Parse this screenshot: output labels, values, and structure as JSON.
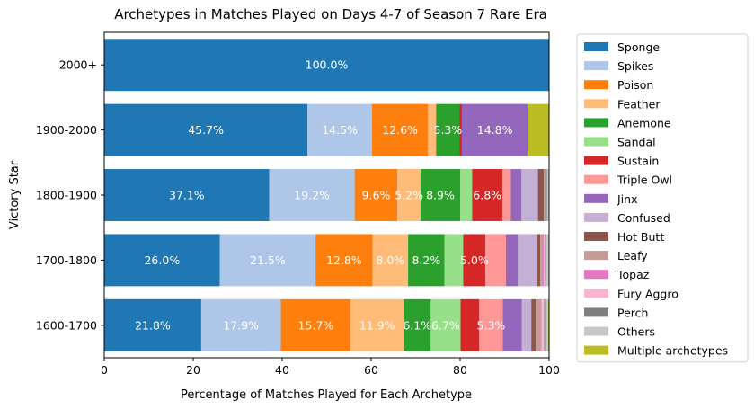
{
  "chart_data": {
    "type": "bar",
    "orientation": "horizontal",
    "stacked": true,
    "title": "Archetypes in Matches Played on Days 4-7 of Season 7 Rare Era",
    "xlabel": "Percentage of Matches Played for Each Archetype",
    "ylabel": "Victory Star",
    "xlim": [
      0,
      100
    ],
    "xticks": [
      "0",
      "20",
      "40",
      "60",
      "80",
      "100"
    ],
    "categories": [
      "2000+",
      "1900-2000",
      "1800-1900",
      "1700-1800",
      "1600-1700"
    ],
    "legend_position": "outside-right",
    "grid": false,
    "series": [
      {
        "name": "Sponge",
        "color": "#1f77b4",
        "values": [
          100.0,
          45.7,
          37.1,
          26.0,
          21.8
        ]
      },
      {
        "name": "Spikes",
        "color": "#aec7e8",
        "values": [
          0,
          14.5,
          19.2,
          21.5,
          17.9
        ]
      },
      {
        "name": "Poison",
        "color": "#ff7f0e",
        "values": [
          0,
          12.6,
          9.6,
          12.8,
          15.7
        ]
      },
      {
        "name": "Feather",
        "color": "#ffbb78",
        "values": [
          0,
          1.8,
          5.2,
          8.0,
          11.9
        ]
      },
      {
        "name": "Anemone",
        "color": "#2ca02c",
        "values": [
          0,
          5.3,
          8.9,
          8.2,
          6.1
        ]
      },
      {
        "name": "Sandal",
        "color": "#98df8a",
        "values": [
          0,
          0,
          2.7,
          4.2,
          6.7
        ]
      },
      {
        "name": "Sustain",
        "color": "#d62728",
        "values": [
          0,
          0.5,
          6.8,
          5.0,
          4.2
        ]
      },
      {
        "name": "Triple Owl",
        "color": "#ff9896",
        "values": [
          0,
          0,
          1.9,
          4.6,
          5.3
        ]
      },
      {
        "name": "Jinx",
        "color": "#9467bd",
        "values": [
          0,
          14.8,
          2.4,
          2.7,
          4.3
        ]
      },
      {
        "name": "Confused",
        "color": "#c5b0d5",
        "values": [
          0,
          0,
          3.7,
          4.3,
          2.1
        ]
      },
      {
        "name": "Hot Butt",
        "color": "#8c564b",
        "values": [
          0,
          0,
          1.3,
          0.7,
          1.0
        ]
      },
      {
        "name": "Leafy",
        "color": "#c49c94",
        "values": [
          0,
          0,
          0.3,
          0.6,
          1.2
        ]
      },
      {
        "name": "Topaz",
        "color": "#e377c2",
        "values": [
          0,
          0,
          0,
          0.2,
          0.1
        ]
      },
      {
        "name": "Fury Aggro",
        "color": "#f7b6d2",
        "values": [
          0,
          0,
          0,
          0.3,
          0.6
        ]
      },
      {
        "name": "Perch",
        "color": "#7f7f7f",
        "values": [
          0,
          0,
          0.4,
          0.2,
          0.2
        ]
      },
      {
        "name": "Others",
        "color": "#c7c7c7",
        "values": [
          0,
          0,
          0.5,
          0.6,
          0.7
        ]
      },
      {
        "name": "Multiple archetypes",
        "color": "#bcbd22",
        "values": [
          0,
          4.8,
          0.0,
          0.1,
          0.2
        ]
      }
    ],
    "data_labels": [
      {
        "category": "2000+",
        "series": "Sponge",
        "text": "100.0%"
      },
      {
        "category": "1900-2000",
        "series": "Sponge",
        "text": "45.7%"
      },
      {
        "category": "1900-2000",
        "series": "Spikes",
        "text": "14.5%"
      },
      {
        "category": "1900-2000",
        "series": "Poison",
        "text": "12.6%"
      },
      {
        "category": "1900-2000",
        "series": "Anemone",
        "text": "5.3%"
      },
      {
        "category": "1900-2000",
        "series": "Jinx",
        "text": "14.8%"
      },
      {
        "category": "1800-1900",
        "series": "Sponge",
        "text": "37.1%"
      },
      {
        "category": "1800-1900",
        "series": "Spikes",
        "text": "19.2%"
      },
      {
        "category": "1800-1900",
        "series": "Poison",
        "text": "9.6%"
      },
      {
        "category": "1800-1900",
        "series": "Feather",
        "text": "5.2%"
      },
      {
        "category": "1800-1900",
        "series": "Anemone",
        "text": "8.9%"
      },
      {
        "category": "1800-1900",
        "series": "Sustain",
        "text": "6.8%"
      },
      {
        "category": "1700-1800",
        "series": "Sponge",
        "text": "26.0%"
      },
      {
        "category": "1700-1800",
        "series": "Spikes",
        "text": "21.5%"
      },
      {
        "category": "1700-1800",
        "series": "Poison",
        "text": "12.8%"
      },
      {
        "category": "1700-1800",
        "series": "Feather",
        "text": "8.0%"
      },
      {
        "category": "1700-1800",
        "series": "Anemone",
        "text": "8.2%"
      },
      {
        "category": "1700-1800",
        "series": "Sustain",
        "text": "5.0%"
      },
      {
        "category": "1600-1700",
        "series": "Sponge",
        "text": "21.8%"
      },
      {
        "category": "1600-1700",
        "series": "Spikes",
        "text": "17.9%"
      },
      {
        "category": "1600-1700",
        "series": "Poison",
        "text": "15.7%"
      },
      {
        "category": "1600-1700",
        "series": "Feather",
        "text": "11.9%"
      },
      {
        "category": "1600-1700",
        "series": "Anemone",
        "text": "6.1%"
      },
      {
        "category": "1600-1700",
        "series": "Sandal",
        "text": "6.7%"
      },
      {
        "category": "1600-1700",
        "series": "Triple Owl",
        "text": "5.3%"
      }
    ]
  }
}
